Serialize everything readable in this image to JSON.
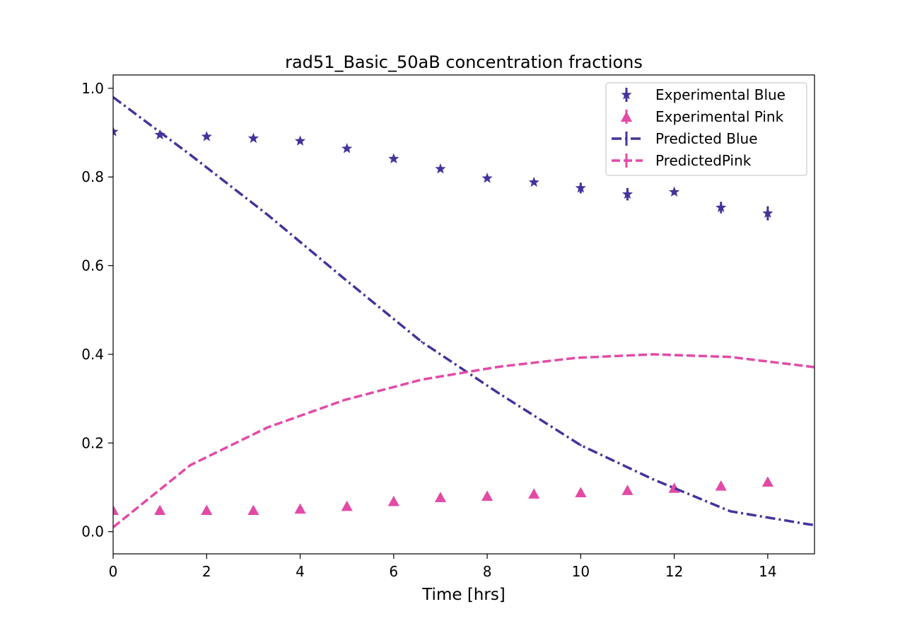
{
  "colors": {
    "blue": "#45339b",
    "pink": "#e24aa6",
    "axis": "#000000",
    "background": "#ffffff",
    "legend_border": "#cccccc"
  },
  "chart_data": {
    "type": "line",
    "title": "rad51_Basic_50aB concentration fractions",
    "xlabel": "Time [hrs]",
    "ylabel": "",
    "xlim": [
      0,
      15
    ],
    "ylim": [
      -0.05,
      1.03
    ],
    "xticks": [
      0,
      2,
      4,
      6,
      8,
      10,
      12,
      14
    ],
    "xtick_labels": [
      "0",
      "2",
      "4",
      "6",
      "8",
      "10",
      "12",
      "14"
    ],
    "yticks": [
      0.0,
      0.2,
      0.4,
      0.6,
      0.8,
      1.0
    ],
    "ytick_labels": [
      "0.0",
      "0.2",
      "0.4",
      "0.6",
      "0.8",
      "1.0"
    ],
    "grid": false,
    "legend_position": "top-right",
    "series": [
      {
        "name": "Experimental Blue",
        "kind": "scatter",
        "marker": "star",
        "color": "#45339b",
        "x": [
          0,
          1,
          2,
          3,
          4,
          5,
          6,
          7,
          8,
          9,
          10,
          11,
          12,
          13,
          14
        ],
        "y": [
          0.902,
          0.895,
          0.891,
          0.887,
          0.881,
          0.864,
          0.841,
          0.818,
          0.797,
          0.788,
          0.775,
          0.761,
          0.766,
          0.731,
          0.718
        ],
        "err": [
          0.004,
          0.004,
          0.005,
          0.004,
          0.005,
          0.004,
          0.005,
          0.004,
          0.004,
          0.005,
          0.012,
          0.014,
          0.006,
          0.013,
          0.016
        ]
      },
      {
        "name": "Experimental Pink",
        "kind": "scatter",
        "marker": "triangle",
        "color": "#e24aa6",
        "x": [
          0,
          1,
          2,
          3,
          4,
          5,
          6,
          7,
          8,
          9,
          10,
          11,
          12,
          13,
          14
        ],
        "y": [
          0.049,
          0.049,
          0.049,
          0.049,
          0.052,
          0.058,
          0.069,
          0.078,
          0.081,
          0.086,
          0.089,
          0.094,
          0.099,
          0.104,
          0.113
        ],
        "err": [
          0.002,
          0.002,
          0.002,
          0.002,
          0.002,
          0.002,
          0.002,
          0.002,
          0.002,
          0.002,
          0.002,
          0.002,
          0.002,
          0.002,
          0.003
        ]
      },
      {
        "name": "Predicted Blue",
        "kind": "line",
        "style": "dashdot",
        "color": "#45339b",
        "x": [
          0,
          1.65,
          3.3,
          4.95,
          6.6,
          8.25,
          10.0,
          11.55,
          13.2,
          14.85,
          15.0
        ],
        "y": [
          0.98,
          0.85,
          0.715,
          0.57,
          0.428,
          0.312,
          0.195,
          0.118,
          0.046,
          0.017,
          0.015
        ],
        "err": [
          0.0,
          0.0,
          0.0,
          0.0,
          0.002,
          0.002,
          0.002,
          0.002,
          0.002,
          0.002,
          0.0
        ]
      },
      {
        "name": "PredictedPink",
        "kind": "line",
        "style": "dashed",
        "color": "#e24aa6",
        "x": [
          0,
          1.65,
          3.3,
          4.95,
          6.6,
          8.25,
          9.9,
          11.55,
          13.2,
          14.85,
          15.0
        ],
        "y": [
          0.01,
          0.15,
          0.235,
          0.297,
          0.343,
          0.372,
          0.392,
          0.4,
          0.394,
          0.373,
          0.371
        ],
        "err": [
          0.0,
          0.0,
          0.0,
          0.0,
          0.0,
          0.0,
          0.0,
          0.0,
          0.0,
          0.0,
          0.0
        ]
      }
    ]
  }
}
